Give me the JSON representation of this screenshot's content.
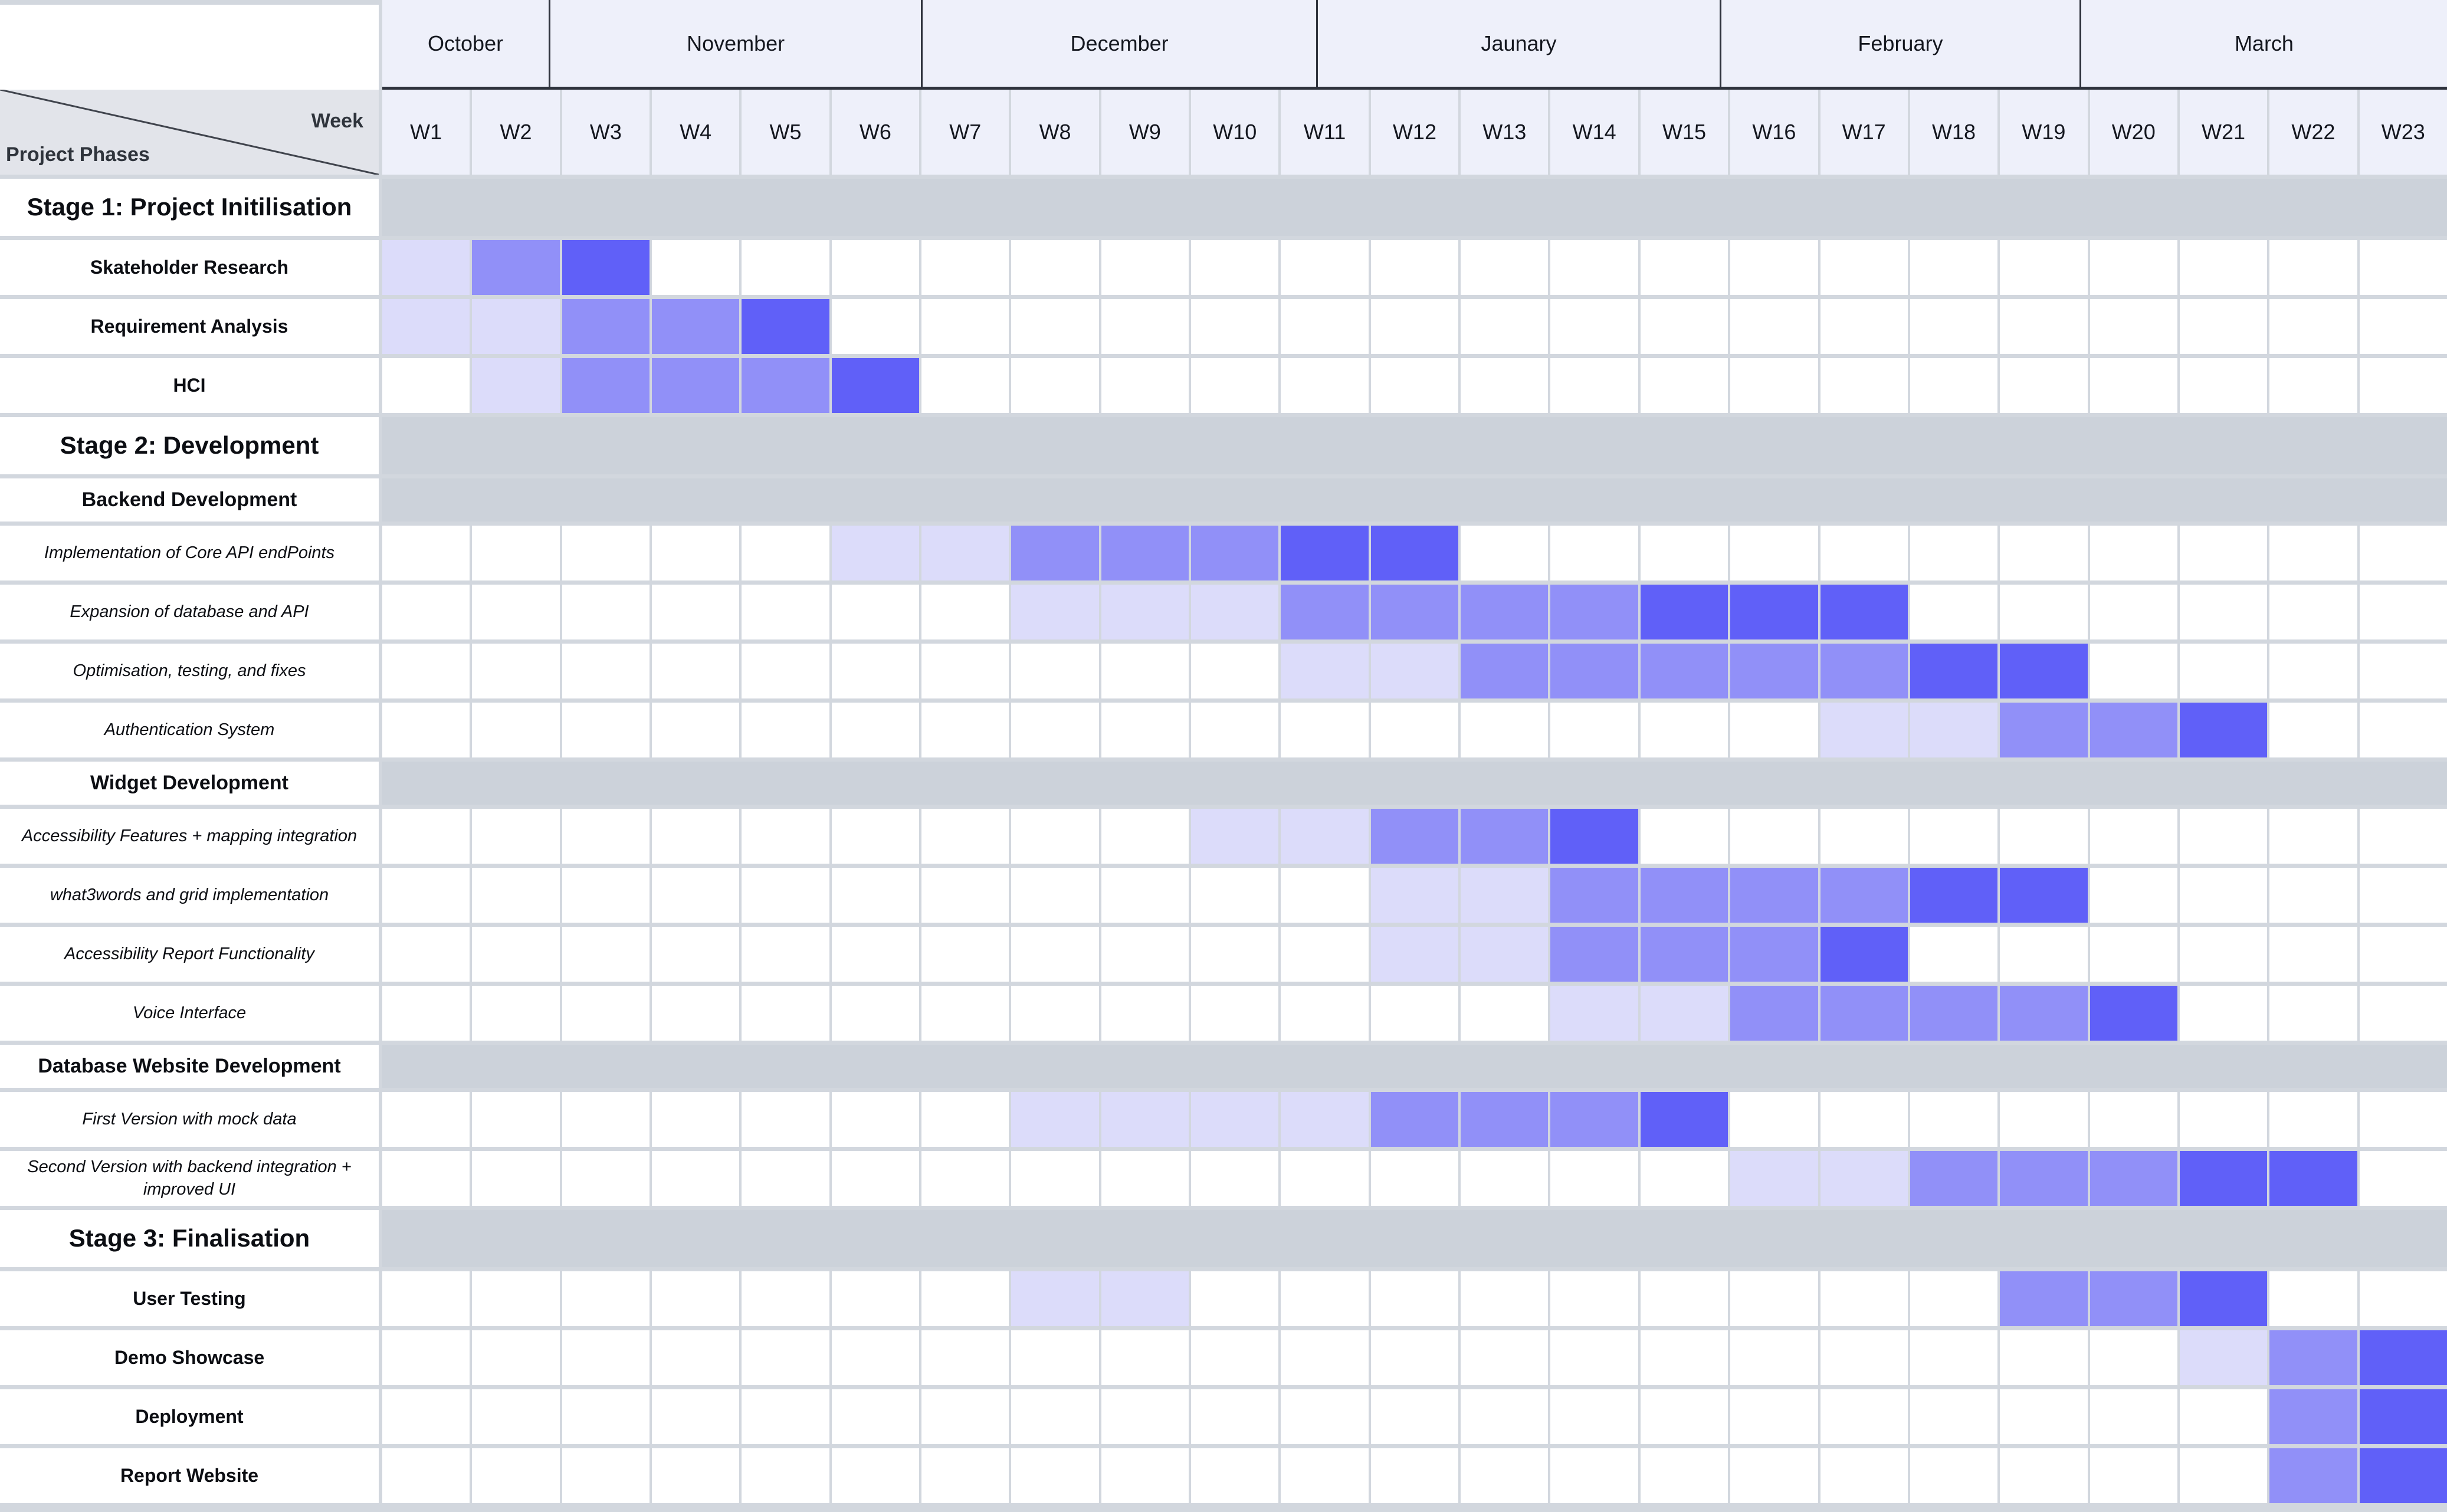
{
  "corner": {
    "week_label": "Week",
    "phases_label": "Project Phases"
  },
  "colors": {
    "grid_background": "#d2d7de",
    "header_background": "#eef0fa",
    "section_band": "#ccd2da",
    "corner_background": "#e2e4ea",
    "month_divider": "#2e323c",
    "cell_light": "#dcdcfa",
    "cell_medium": "#9190f8",
    "cell_dark": "#6060f8"
  },
  "chart_data": {
    "type": "heatmap",
    "title": "Project phases Gantt chart by week",
    "x_axis_label": "Week",
    "y_axis_label": "Project Phases",
    "columns": [
      "W1",
      "W2",
      "W3",
      "W4",
      "W5",
      "W6",
      "W7",
      "W8",
      "W9",
      "W10",
      "W11",
      "W12",
      "W13",
      "W14",
      "W15",
      "W16",
      "W17",
      "W18",
      "W19",
      "W20",
      "W21",
      "W22",
      "W23"
    ],
    "months": [
      {
        "label": "October",
        "width_pct": 8.06,
        "approx_weeks": "W1-W2"
      },
      {
        "label": "November",
        "width_pct": 18.03,
        "approx_weeks": "W3-W6"
      },
      {
        "label": "December",
        "width_pct": 19.14,
        "approx_weeks": "W7-W10"
      },
      {
        "label": "Jaunary",
        "width_pct": 19.54,
        "approx_weeks": "W11-W14"
      },
      {
        "label": "February",
        "width_pct": 17.43,
        "approx_weeks": "W15-W19"
      },
      {
        "label": "March",
        "width_pct": 17.8,
        "approx_weeks": "W20-W23"
      }
    ],
    "levels": [
      "light",
      "medium",
      "dark"
    ],
    "level_colors": {
      "light": "#dcdcfa",
      "medium": "#9190f8",
      "dark": "#6060f8"
    },
    "rows": [
      {
        "type": "stage",
        "label": "Stage 1: Project Initilisation"
      },
      {
        "type": "task",
        "style": "bold",
        "label": "Skateholder Research",
        "light": [
          1
        ],
        "medium": [
          2
        ],
        "dark": [
          3
        ]
      },
      {
        "type": "task",
        "style": "bold",
        "label": "Requirement Analysis",
        "light": [
          1,
          2
        ],
        "medium": [
          3,
          4
        ],
        "dark": [
          5
        ]
      },
      {
        "type": "task",
        "style": "bold",
        "label": "HCI",
        "light": [
          2
        ],
        "medium": [
          3,
          4,
          5
        ],
        "dark": [
          6
        ]
      },
      {
        "type": "stage",
        "label": "Stage 2: Development"
      },
      {
        "type": "sub",
        "label": "Backend Development"
      },
      {
        "type": "task",
        "style": "italic",
        "label": "Implementation of Core API endPoints",
        "light": [
          6,
          7
        ],
        "medium": [
          8,
          9,
          10
        ],
        "dark": [
          11,
          12
        ]
      },
      {
        "type": "task",
        "style": "italic",
        "label": "Expansion of database and API",
        "light": [
          8,
          9,
          10
        ],
        "medium": [
          11,
          12,
          13,
          14
        ],
        "dark": [
          15,
          16,
          17
        ]
      },
      {
        "type": "task",
        "style": "italic",
        "label": "Optimisation, testing, and fixes",
        "light": [
          11,
          12
        ],
        "medium": [
          13,
          14,
          15,
          16,
          17
        ],
        "dark": [
          18,
          19
        ]
      },
      {
        "type": "task",
        "style": "italic",
        "label": "Authentication System",
        "light": [
          17,
          18
        ],
        "medium": [
          19,
          20
        ],
        "dark": [
          21
        ]
      },
      {
        "type": "sub",
        "label": "Widget Development"
      },
      {
        "type": "task",
        "style": "italic",
        "label": "Accessibility Features + mapping integration",
        "light": [
          10,
          11
        ],
        "medium": [
          12,
          13
        ],
        "dark": [
          14
        ]
      },
      {
        "type": "task",
        "style": "italic",
        "label": "what3words and grid implementation",
        "light": [
          12,
          13
        ],
        "medium": [
          14,
          15,
          16,
          17
        ],
        "dark": [
          18,
          19
        ]
      },
      {
        "type": "task",
        "style": "italic",
        "label": "Accessibility Report Functionality",
        "light": [
          12,
          13
        ],
        "medium": [
          14,
          15,
          16
        ],
        "dark": [
          17
        ]
      },
      {
        "type": "task",
        "style": "italic",
        "label": "Voice Interface",
        "light": [
          14,
          15
        ],
        "medium": [
          16,
          17,
          18,
          19
        ],
        "dark": [
          20
        ]
      },
      {
        "type": "sub",
        "label": "Database Website Development"
      },
      {
        "type": "task",
        "style": "italic",
        "label": "First Version with mock data",
        "light": [
          8,
          9,
          10,
          11
        ],
        "medium": [
          12,
          13,
          14
        ],
        "dark": [
          15
        ]
      },
      {
        "type": "task",
        "style": "italic",
        "label": "Second Version with backend integration + improved UI",
        "light": [
          16,
          17
        ],
        "medium": [
          18,
          19,
          20
        ],
        "dark": [
          21,
          22
        ]
      },
      {
        "type": "stage",
        "label": "Stage 3: Finalisation"
      },
      {
        "type": "task",
        "style": "bold",
        "label": "User Testing",
        "light": [
          8,
          9
        ],
        "medium": [
          19,
          20
        ],
        "dark": [
          21
        ]
      },
      {
        "type": "task",
        "style": "bold",
        "label": "Demo Showcase",
        "light": [
          21
        ],
        "medium": [
          22
        ],
        "dark": [
          23
        ]
      },
      {
        "type": "task",
        "style": "bold",
        "label": "Deployment",
        "light": [],
        "medium": [
          22
        ],
        "dark": [
          23
        ]
      },
      {
        "type": "task",
        "style": "bold",
        "label": "Report Website",
        "light": [],
        "medium": [
          22
        ],
        "dark": [
          23
        ]
      }
    ]
  }
}
